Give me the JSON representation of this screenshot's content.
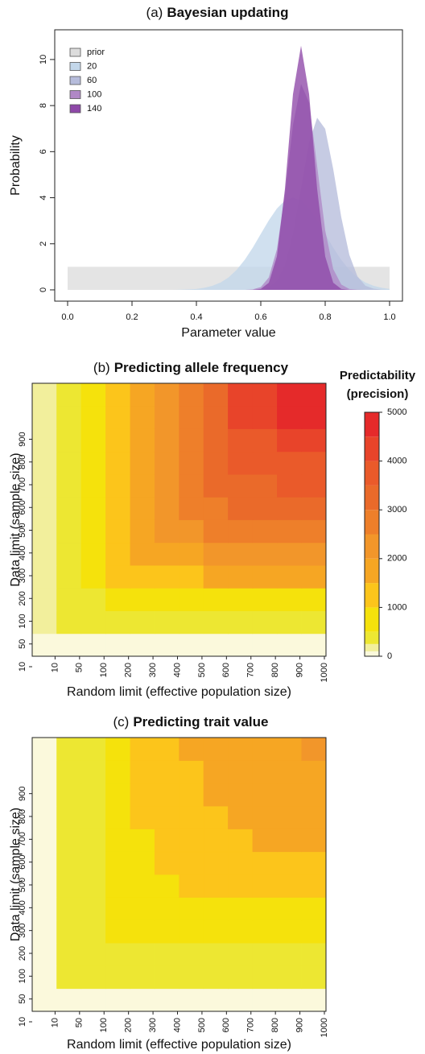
{
  "chart_data": [
    {
      "type": "density",
      "panel": "(a)",
      "title": "Bayesian updating",
      "x_label": "Parameter value",
      "y_label": "Probability",
      "x": [
        0,
        0.025,
        0.05,
        0.075,
        0.1,
        0.125,
        0.15,
        0.175,
        0.2,
        0.225,
        0.25,
        0.275,
        0.3,
        0.325,
        0.35,
        0.375,
        0.4,
        0.425,
        0.45,
        0.475,
        0.5,
        0.525,
        0.55,
        0.575,
        0.6,
        0.625,
        0.65,
        0.675,
        0.7,
        0.725,
        0.75,
        0.775,
        0.8,
        0.825,
        0.85,
        0.875,
        0.9,
        0.925,
        0.95,
        0.975,
        1
      ],
      "series": [
        {
          "name": "prior",
          "color": "#dcdcdc",
          "values": [
            1,
            1,
            1,
            1,
            1,
            1,
            1,
            1,
            1,
            1,
            1,
            1,
            1,
            1,
            1,
            1,
            1,
            1,
            1,
            1,
            1,
            1,
            1,
            1,
            1,
            1,
            1,
            1,
            1,
            1,
            1,
            1,
            1,
            1,
            1,
            1,
            1,
            1,
            1,
            1,
            1
          ]
        },
        {
          "name": "20",
          "color": "#c3d7ea",
          "values": [
            0,
            0,
            0,
            0,
            0,
            0,
            0,
            0,
            0,
            0,
            0,
            0,
            0,
            0,
            0.01,
            0.02,
            0.04,
            0.09,
            0.18,
            0.32,
            0.54,
            0.87,
            1.3,
            1.83,
            2.43,
            3.02,
            3.53,
            3.88,
            4,
            3.88,
            3.53,
            3.02,
            2.43,
            1.83,
            1.3,
            0.87,
            0.54,
            0.32,
            0.18,
            0.09,
            0.04
          ]
        },
        {
          "name": "60",
          "color": "#b6bcdb",
          "values": [
            0,
            0,
            0,
            0,
            0,
            0,
            0,
            0,
            0,
            0,
            0,
            0,
            0,
            0,
            0,
            0,
            0,
            0,
            0,
            0,
            0,
            0,
            0,
            0,
            0.02,
            0.11,
            0.38,
            1.07,
            2.42,
            4.4,
            6.4,
            7.47,
            6.99,
            5.24,
            3.15,
            1.52,
            0.59,
            0.18,
            0.05,
            0.01,
            0
          ]
        },
        {
          "name": "100",
          "color": "#b088c6",
          "values": [
            0,
            0,
            0,
            0,
            0,
            0,
            0,
            0,
            0,
            0,
            0,
            0,
            0,
            0,
            0,
            0,
            0,
            0,
            0,
            0,
            0,
            0,
            0,
            0.02,
            0.12,
            0.54,
            1.76,
            4.17,
            7.16,
            8.94,
            8.13,
            5.37,
            2.58,
            0.9,
            0.23,
            0.04,
            0.01,
            0,
            0,
            0,
            0
          ]
        },
        {
          "name": "140",
          "color": "#8e48a8",
          "values": [
            0,
            0,
            0,
            0,
            0,
            0,
            0,
            0,
            0,
            0,
            0,
            0,
            0,
            0,
            0,
            0,
            0,
            0,
            0,
            0,
            0,
            0,
            0,
            0,
            0.04,
            0.31,
            1.45,
            4.38,
            8.5,
            10.6,
            8.5,
            4.38,
            1.45,
            0.31,
            0.04,
            0,
            0,
            0,
            0,
            0,
            0
          ]
        }
      ],
      "xlim": [
        -0.04,
        1.04
      ],
      "ylim": [
        -0.49,
        11.29
      ],
      "xticks": [
        {
          "value": 0,
          "label": "0.0"
        },
        0.2,
        0.4,
        0.6,
        0.8,
        {
          "value": 1,
          "label": "1.0"
        }
      ],
      "yticks": [
        0,
        2,
        4,
        6,
        8,
        10
      ],
      "legend": "topleft"
    },
    {
      "type": "heatmap",
      "panel": "(b)",
      "title": "Predicting allele frequency",
      "x_label": "Random limit (effective population size)",
      "y_label": "Data limit (sample size)",
      "x_categories": [
        10,
        50,
        100,
        200,
        300,
        400,
        500,
        600,
        700,
        800,
        900,
        1000
      ],
      "y_categories": [
        10,
        50,
        100,
        200,
        300,
        400,
        500,
        600,
        700,
        800,
        900,
        null
      ],
      "z": [
        [
          60,
          80,
          80,
          80,
          80,
          80,
          80,
          80,
          80,
          80,
          80,
          80
        ],
        [
          180,
          350,
          400,
          400,
          400,
          400,
          400,
          400,
          400,
          400,
          400,
          400
        ],
        [
          180,
          400,
          420,
          700,
          700,
          700,
          700,
          700,
          700,
          700,
          700,
          700
        ],
        [
          180,
          400,
          700,
          1200,
          1200,
          1200,
          1200,
          1700,
          1700,
          1700,
          1700,
          1700
        ],
        [
          180,
          400,
          700,
          1200,
          1700,
          1700,
          1700,
          2200,
          2200,
          2200,
          2200,
          2200
        ],
        [
          180,
          400,
          700,
          1200,
          1700,
          2200,
          2200,
          2700,
          2700,
          2700,
          2700,
          2700
        ],
        [
          180,
          400,
          700,
          1200,
          1700,
          2200,
          2700,
          2700,
          3200,
          3200,
          3200,
          3200
        ],
        [
          180,
          400,
          700,
          1200,
          1700,
          2200,
          2700,
          3200,
          3200,
          3200,
          3700,
          3700
        ],
        [
          180,
          400,
          700,
          1200,
          1700,
          2200,
          2700,
          3200,
          3700,
          3700,
          3700,
          3700
        ],
        [
          180,
          400,
          700,
          1200,
          1700,
          2200,
          2700,
          3200,
          3700,
          3700,
          4200,
          4200
        ],
        [
          180,
          400,
          700,
          1200,
          1700,
          2200,
          2700,
          3200,
          4200,
          4200,
          4700,
          4700
        ],
        [
          180,
          400,
          700,
          1200,
          1700,
          2200,
          2700,
          3200,
          4200,
          4200,
          4700,
          4700
        ]
      ],
      "breaks": [
        0,
        100,
        250,
        500,
        1000,
        1500,
        2000,
        2500,
        3000,
        3500,
        4000,
        4500,
        5000
      ],
      "colors": [
        "#fbf9dc",
        "#f2ef9c",
        "#ede732",
        "#f5e20c",
        "#fcc51b",
        "#f6a623",
        "#f2962a",
        "#ee7f2a",
        "#ea6a2a",
        "#ea5a2a",
        "#e8442a",
        "#e52a2a"
      ],
      "colorbar_title": [
        "Predictability",
        "(precision)"
      ],
      "colorbar_ticks": [
        0,
        1000,
        2000,
        3000,
        4000,
        5000
      ]
    },
    {
      "type": "heatmap",
      "panel": "(c)",
      "title": "Predicting trait value",
      "x_label": "Random limit (effective population size)",
      "y_label": "Data limit (sample size)",
      "x_categories": [
        10,
        50,
        100,
        200,
        300,
        400,
        500,
        600,
        700,
        800,
        900,
        1000
      ],
      "y_categories": [
        10,
        50,
        100,
        200,
        300,
        400,
        500,
        600,
        700,
        800,
        900,
        null
      ],
      "z": [
        [
          60,
          60,
          60,
          60,
          60,
          60,
          60,
          60,
          60,
          60,
          60,
          60
        ],
        [
          60,
          350,
          350,
          350,
          350,
          350,
          350,
          350,
          350,
          350,
          350,
          350
        ],
        [
          60,
          350,
          400,
          450,
          450,
          450,
          450,
          450,
          450,
          450,
          450,
          450
        ],
        [
          60,
          350,
          450,
          700,
          700,
          700,
          700,
          700,
          700,
          700,
          700,
          700
        ],
        [
          60,
          350,
          450,
          700,
          700,
          700,
          700,
          700,
          700,
          700,
          700,
          700
        ],
        [
          60,
          350,
          450,
          700,
          700,
          700,
          1200,
          1200,
          1200,
          1200,
          1200,
          1200
        ],
        [
          60,
          350,
          450,
          700,
          700,
          1200,
          1200,
          1200,
          1200,
          1200,
          1200,
          1200
        ],
        [
          60,
          350,
          450,
          700,
          700,
          1200,
          1200,
          1200,
          1200,
          1700,
          1700,
          1700
        ],
        [
          60,
          350,
          450,
          700,
          1200,
          1200,
          1200,
          1200,
          1700,
          1700,
          1700,
          1700
        ],
        [
          60,
          350,
          450,
          700,
          1200,
          1200,
          1200,
          1700,
          1700,
          1700,
          1700,
          1700
        ],
        [
          60,
          350,
          450,
          700,
          1200,
          1200,
          1200,
          1700,
          1700,
          1700,
          1700,
          1700
        ],
        [
          60,
          350,
          450,
          700,
          1200,
          1200,
          1700,
          1700,
          1700,
          1700,
          1700,
          2200
        ]
      ],
      "breaks": [
        0,
        100,
        250,
        500,
        1000,
        1500,
        2000,
        2500,
        3000,
        3500,
        4000,
        4500,
        5000
      ],
      "colors": [
        "#fbf9dc",
        "#f2ef9c",
        "#ede732",
        "#f5e20c",
        "#fcc51b",
        "#f6a623",
        "#f2962a",
        "#ee7f2a",
        "#ea6a2a",
        "#ea5a2a",
        "#e8442a",
        "#e52a2a"
      ]
    }
  ]
}
